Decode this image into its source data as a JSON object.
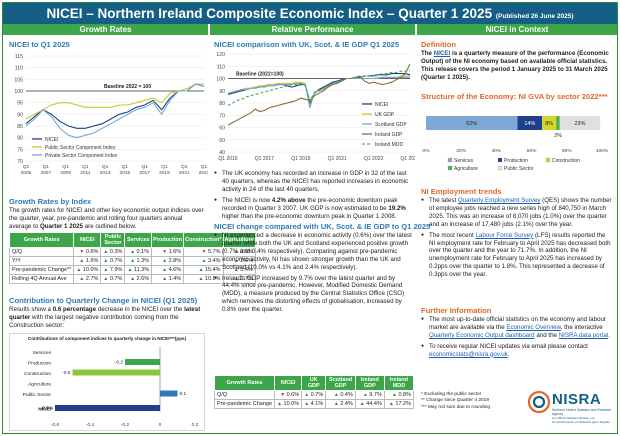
{
  "header": {
    "title": "NICEI – Northern Ireland Composite Economic Index – Quarter 1 2025",
    "published": "(Published 26 June 2025)",
    "sub_growth": "Growth Rates",
    "sub_relative": "Relative Performance",
    "sub_context": "NICEI in Context"
  },
  "left": {
    "chart_title": "NICEI to Q1 2025",
    "growth_title": "Growth Rates by Index",
    "growth_text": "The growth rates for NICEI and other key economic output indices over the quarter, year, pre-pandemic and rolling four quarters annual average to ",
    "growth_text_bold": "Quarter 1 2025",
    "growth_text_end": " are outlined below.",
    "table": {
      "headers": [
        "Growth Rates",
        "NICEI",
        "Public Sector",
        "Services",
        "Production",
        "Construction*",
        "Agriculture"
      ],
      "rows": [
        {
          "label": "Q/Q",
          "cells": [
            {
              "v": "0.6%",
              "d": "dn"
            },
            {
              "v": "0.3%",
              "d": "up"
            },
            {
              "v": "0.1%",
              "d": "up"
            },
            {
              "v": "1.6%",
              "d": "dn"
            },
            {
              "v": "5.7%",
              "d": "dn"
            },
            {
              "v": "0.6%",
              "d": "up"
            }
          ]
        },
        {
          "label": "Y/Y",
          "cells": [
            {
              "v": "1.6%",
              "d": "up"
            },
            {
              "v": "0.7%",
              "d": "up"
            },
            {
              "v": "1.3%",
              "d": "up"
            },
            {
              "v": "2.8%",
              "d": "up"
            },
            {
              "v": "3.4%",
              "d": "up"
            },
            {
              "v": "2.6%",
              "d": "up"
            }
          ]
        },
        {
          "label": "Pre-pandemic Change**",
          "cells": [
            {
              "v": "10.0%",
              "d": "up"
            },
            {
              "v": "7.9%",
              "d": "up"
            },
            {
              "v": "11.3%",
              "d": "up"
            },
            {
              "v": "4.6%",
              "d": "up"
            },
            {
              "v": "15.4%",
              "d": "up"
            },
            {
              "v": "5.4%",
              "d": "up"
            }
          ]
        },
        {
          "label": "Rolling 4Q Annual Ave",
          "cells": [
            {
              "v": "2.7%",
              "d": "up"
            },
            {
              "v": "0.7%",
              "d": "up"
            },
            {
              "v": "2.6%",
              "d": "up"
            },
            {
              "v": "1.4%",
              "d": "up"
            },
            {
              "v": "10.8%",
              "d": "up"
            },
            {
              "v": "2.7%",
              "d": "up"
            }
          ]
        }
      ]
    },
    "contrib_title": "Contribution to Quarterly Change in NICEI (Q1 2025)",
    "contrib_text_a": "Results show a ",
    "contrib_text_b": "0.6 percentage",
    "contrib_text_c": " decrease in the NICEI over the ",
    "contrib_text_d": "latest quarter",
    "contrib_text_e": " with the largest negative contribution coming from the Construction sector:"
  },
  "chart_data": [
    {
      "type": "line",
      "title": "NICEI to Q1 2025",
      "x_ticks": [
        "Q1 2005",
        "Q1 2007",
        "Q1 2009",
        "Q1 2011",
        "Q1 2013",
        "Q1 2015",
        "Q1 2017",
        "Q1 2019",
        "Q1 2021",
        "Q1 2023"
      ],
      "ylim": [
        70,
        115
      ],
      "y_ticks": [
        70,
        75,
        80,
        85,
        90,
        95,
        100,
        105,
        110,
        115
      ],
      "baseline_label": "Baseline 2022 = 100",
      "series": [
        {
          "name": "NICEI",
          "color": "#1f3f8a",
          "dash": "",
          "values": [
            86,
            89,
            92,
            90,
            87,
            85,
            84,
            84,
            85,
            86,
            88,
            90,
            91,
            93,
            94,
            96,
            92,
            97,
            100,
            100,
            103,
            102
          ]
        },
        {
          "name": "Public Sector Component Index",
          "color": "#c9c92a",
          "dash": "",
          "values": [
            88,
            90,
            92,
            94,
            95,
            95,
            94,
            93,
            93,
            93,
            93,
            94,
            94,
            95,
            96,
            97,
            95,
            99,
            100,
            101,
            103,
            103
          ]
        },
        {
          "name": "Private Sector Component Index",
          "color": "#6fa8dc",
          "dash": "",
          "values": [
            85,
            88,
            92,
            89,
            84,
            81,
            80,
            81,
            82,
            84,
            86,
            88,
            90,
            92,
            93,
            95,
            90,
            96,
            100,
            100,
            103,
            102
          ]
        }
      ],
      "legend": [
        "NICEI",
        "Public Sector Component Index",
        "Private Sector Component Index"
      ]
    },
    {
      "type": "line",
      "title": "NICEI comparison with UK, Scot. & IE GDP Q1 2025",
      "x_ticks": [
        "Q1 2015",
        "Q1 2017",
        "Q1 2019",
        "Q1 2021",
        "Q1 2023",
        "Q1 2025"
      ],
      "ylim": [
        40,
        120
      ],
      "y_ticks": [
        40,
        50,
        60,
        70,
        80,
        90,
        100,
        110,
        120
      ],
      "baseline_label": "Baseline (2022=100)",
      "series": [
        {
          "name": "NICEI",
          "color": "#1f3f8a",
          "dash": "",
          "values": [
            87,
            88,
            89,
            90,
            91,
            92,
            93,
            93,
            94,
            95,
            95,
            95,
            95,
            94,
            93,
            94,
            95,
            95,
            80,
            88,
            91,
            93,
            95,
            97,
            98,
            99,
            100,
            100,
            101,
            101,
            102,
            102,
            102,
            103,
            103,
            103,
            104,
            104,
            104,
            104,
            103
          ]
        },
        {
          "name": "UK GDP",
          "color": "#c9c92a",
          "dash": "",
          "values": [
            88,
            89,
            90,
            91,
            92,
            92,
            93,
            94,
            94,
            95,
            95,
            96,
            96,
            96,
            96,
            97,
            97,
            96,
            77,
            89,
            90,
            91,
            93,
            95,
            97,
            98,
            100,
            100,
            100,
            100,
            100,
            100,
            100,
            101,
            101,
            101,
            101,
            101,
            102,
            102,
            102
          ]
        },
        {
          "name": "Scotland GDP",
          "color": "#6fa8dc",
          "dash": "",
          "values": [
            88,
            89,
            90,
            91,
            91,
            92,
            92,
            93,
            93,
            94,
            94,
            95,
            95,
            95,
            95,
            96,
            96,
            95,
            76,
            89,
            90,
            92,
            94,
            96,
            97,
            98,
            100,
            100,
            100,
            100,
            100,
            100,
            100,
            100,
            101,
            101,
            101,
            101,
            101,
            101,
            101
          ]
        },
        {
          "name": "Ireland GDP",
          "color": "#8a6d3b",
          "dash": "",
          "values": [
            62,
            64,
            66,
            68,
            70,
            72,
            75,
            73,
            74,
            76,
            77,
            78,
            79,
            80,
            81,
            82,
            84,
            83,
            82,
            86,
            88,
            90,
            93,
            95,
            96,
            98,
            100,
            100,
            101,
            102,
            98,
            96,
            97,
            96,
            95,
            96,
            97,
            99,
            101,
            104,
            112
          ]
        },
        {
          "name": "Ireland MDD",
          "color": "#4caf50",
          "dash": "3,2",
          "values": [
            78,
            80,
            82,
            83,
            85,
            86,
            87,
            88,
            89,
            90,
            91,
            92,
            93,
            94,
            95,
            95,
            96,
            94,
            82,
            88,
            90,
            92,
            94,
            96,
            97,
            98,
            100,
            100,
            101,
            101,
            102,
            102,
            103,
            103,
            104,
            104,
            105,
            105,
            106,
            106,
            107
          ]
        }
      ]
    },
    {
      "type": "bar",
      "title": "Contributions of component indices to quarterly change in NICEI***(pps)",
      "categories": [
        "Services",
        "Production",
        "Construction",
        "Agriculture",
        "Public Sector",
        "NICEI"
      ],
      "values": [
        0.0,
        -0.2,
        -0.5,
        0.0,
        0.1,
        -0.6
      ],
      "data_labels": [
        "",
        "-0.2",
        "-0.5",
        "",
        "0.1",
        "-0.6%"
      ],
      "colors": [
        "#3da64a",
        "#3da64a",
        "#8cc43f",
        "#3da64a",
        "#2e7ab8",
        "#1f3f8a"
      ],
      "xlim": [
        -0.6,
        0.2
      ],
      "x_ticks": [
        -0.6,
        -0.4,
        -0.2,
        0,
        0.2
      ],
      "x_tick_labels": [
        "-0.6",
        "-0.4",
        "-0.2",
        "0",
        "0.2"
      ]
    },
    {
      "type": "bar",
      "title": "Structure of the Economy: NI GVA by sector 2022***",
      "categories": [
        "Services",
        "Production",
        "Construction",
        "Agriculture",
        "Public Sector"
      ],
      "values": [
        52,
        14,
        8,
        2,
        23
      ],
      "data_labels": [
        "52%",
        "14%",
        "8%",
        "2%",
        "23%"
      ],
      "colors": [
        "#7fa7d6",
        "#1f3f8a",
        "#d6d62a",
        "#4caf50",
        "#e0e0e0"
      ],
      "x_ticks": [
        "0%",
        "20%",
        "40%",
        "60%",
        "80%",
        "100%"
      ],
      "legend": [
        "Services",
        "Production",
        "Construction",
        "Agriculture",
        "Public Sector"
      ]
    }
  ],
  "middle": {
    "chart_title": "NICEI comparison with UK, Scot. & IE GDP Q1 2025",
    "bullet1": "The UK economy has recorded an increase in GDP in 32 of the last 40 quarters, whereas the NICEI has reported increases in economic activity in 24 of the last 40 quarters.",
    "bullet2_a": "The NICEI is now ",
    "bullet2_b": "4.2% above",
    "bullet2_c": " the pre-economic downturn peak recorded in Quarter 3 2007. UK GDP is now estimated to be ",
    "bullet2_d": "19.2%",
    "bullet2_e": " higher than the pre-economic downturn peak in Quarter 1 2008.",
    "change_title": "NICEI change compared with UK, Scot. & IE GDP to Q1 2025",
    "bullet3": "NI experienced a decrease in economic activity (0.6%) over the latest quarter while both the UK and Scotland experienced positive growth (0.7% and 0.4% respectively). Comparing against pre-pandemic economic activity, NI has shown stronger growth than the UK and Scotland (10.0% vs 4.1% and 2.4% respectively).",
    "bullet4": "Ireland's GDP increased by 9.7% over the latest quarter and by 44.4% since pre-pandemic. However, Modified Domestic Demand (MDD), a measure produced by the Central Statistics Office (CSO) which removes the distorting effects of globalisation, increased by 0.8% over the quarter.",
    "table": {
      "headers": [
        "Growth Rates",
        "NICEI",
        "UK GDP",
        "Scotland GDP",
        "Ireland GDP",
        "Ireland MDD"
      ],
      "rows": [
        {
          "label": "Q/Q",
          "cells": [
            {
              "v": "0.6%",
              "d": "dn"
            },
            {
              "v": "0.7%",
              "d": "up"
            },
            {
              "v": "0.4%",
              "d": "up"
            },
            {
              "v": "9.7%",
              "d": "up"
            },
            {
              "v": "0.8%",
              "d": "up"
            }
          ]
        },
        {
          "label": "Pre-pandemic Change",
          "cells": [
            {
              "v": "10.0%",
              "d": "up"
            },
            {
              "v": "4.1%",
              "d": "up"
            },
            {
              "v": "2.4%",
              "d": "up"
            },
            {
              "v": "44.4%",
              "d": "up"
            },
            {
              "v": "17.2%",
              "d": "up"
            }
          ]
        }
      ]
    }
  },
  "right": {
    "definition_title": "Definition",
    "def_a": "The ",
    "def_link": "NICEI",
    "def_b": " is a quarterly measure of the performance (Economic Output) of the NI economy based on available official statistics. This release covers the period 1 January 2025 to 31 March 2025 (Quarter 1 2025).",
    "structure_title": "Structure of the Economy: NI GVA by sector 2022***",
    "emp_title": "NI Employment trends",
    "emp1_a": "The latest ",
    "emp1_link": "Quarterly Employment Survey",
    "emp1_b": " (QES) shows the number of employee jobs reached a new series high of 840,750 in March 2025. This was an increase of 8,070 jobs (1.0%) over the quarter and an increase of 17,480 jobs (2.1%) over the year.",
    "emp2_a": "The most recent ",
    "emp2_link": "Labour Force Survey",
    "emp2_b": " (LFS) results reported the NI employment rate for February to April 2025 has decreased both over the quarter and the year to 71.7%. In addition, the NI unemployment rate for February to April 2025 has increased by 0.2pps over the quarter to 1.8%. This represented a decrease of 0.3pps over the year.",
    "info_title": "Further Information",
    "info1_a": "The most up-to-date official statistics on the economy and labour market are available via the ",
    "info1_link1": "Economic Overview",
    "info1_b": ", the interactive ",
    "info1_link2": "Quarterly Economic Output dashboard",
    "info1_c": " and the ",
    "info1_link3": "NISRA data portal",
    "info1_d": ".",
    "info2_a": "To receive regular NICEI updates via email please contact ",
    "info2_link": "economicstats@nisra.gov.uk",
    "info2_b": ".",
    "foot1": "* Excluding the public sector",
    "foot2": "** Change since Quarter 4 2019",
    "foot3": "*** May not sum due to rounding",
    "logo": "NISRA",
    "logo_sub": "Northern Ireland Statistics and Research Agency",
    "logo_sub2": "An Official Statistics Bureau | An Gníomhaireacht um Staitisticí agus Taighde"
  }
}
